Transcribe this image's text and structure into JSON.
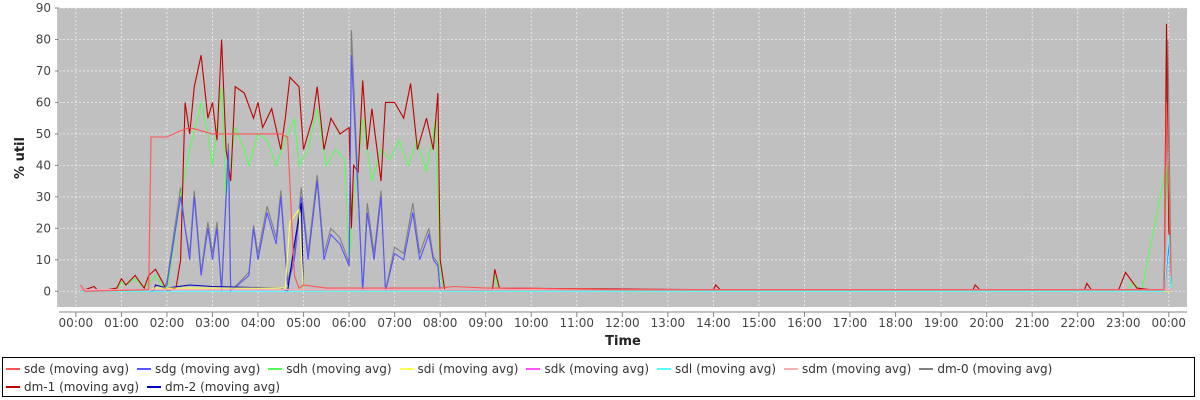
{
  "chart_data": {
    "type": "line",
    "xlabel": "Time",
    "ylabel": "% util",
    "xlim": [
      -0.37,
      24.4
    ],
    "ylim": [
      -5,
      90
    ],
    "yticks": [
      0,
      10,
      20,
      30,
      40,
      50,
      60,
      70,
      80,
      90
    ],
    "xticks": [
      "00:00",
      "01:00",
      "02:00",
      "03:00",
      "04:00",
      "05:00",
      "06:00",
      "07:00",
      "08:00",
      "09:00",
      "10:00",
      "11:00",
      "12:00",
      "13:00",
      "14:00",
      "15:00",
      "16:00",
      "17:00",
      "18:00",
      "19:00",
      "20:00",
      "21:00",
      "22:00",
      "23:00",
      "00:00"
    ],
    "grid": true,
    "legend_position": "bottom",
    "series": [
      {
        "name": "dm-0 (moving avg)",
        "color": "#808080",
        "points": [
          [
            0.1,
            0
          ],
          [
            1.9,
            0
          ],
          [
            2.0,
            3
          ],
          [
            2.3,
            33
          ],
          [
            2.4,
            20
          ],
          [
            2.5,
            12
          ],
          [
            2.6,
            32
          ],
          [
            2.75,
            6
          ],
          [
            2.9,
            22
          ],
          [
            3.0,
            12
          ],
          [
            3.1,
            22
          ],
          [
            3.2,
            0
          ],
          [
            3.35,
            47
          ],
          [
            3.4,
            0
          ],
          [
            3.8,
            6
          ],
          [
            3.9,
            21
          ],
          [
            4.0,
            12
          ],
          [
            4.2,
            27
          ],
          [
            4.4,
            17
          ],
          [
            4.5,
            32
          ],
          [
            4.65,
            3
          ],
          [
            4.8,
            12
          ],
          [
            4.95,
            33
          ],
          [
            5.1,
            12
          ],
          [
            5.3,
            37
          ],
          [
            5.45,
            12
          ],
          [
            5.6,
            20
          ],
          [
            5.8,
            17
          ],
          [
            6.0,
            9
          ],
          [
            6.05,
            83
          ],
          [
            6.2,
            32
          ],
          [
            6.3,
            0
          ],
          [
            6.4,
            28
          ],
          [
            6.55,
            12
          ],
          [
            6.7,
            32
          ],
          [
            6.8,
            0
          ],
          [
            7.0,
            14
          ],
          [
            7.2,
            12
          ],
          [
            7.4,
            28
          ],
          [
            7.55,
            12
          ],
          [
            7.75,
            20
          ],
          [
            7.85,
            11
          ],
          [
            7.95,
            9
          ],
          [
            8.0,
            0
          ],
          [
            23.2,
            0.5
          ],
          [
            23.9,
            0
          ],
          [
            23.98,
            80
          ],
          [
            24.05,
            2
          ]
        ]
      },
      {
        "name": "sdh (moving avg)",
        "color": "#55ff55",
        "points": [
          [
            0.1,
            0
          ],
          [
            0.9,
            0
          ],
          [
            1.0,
            3
          ],
          [
            1.1,
            2
          ],
          [
            1.3,
            4
          ],
          [
            1.5,
            1
          ],
          [
            1.75,
            5
          ],
          [
            2.0,
            0
          ],
          [
            2.3,
            30
          ],
          [
            2.5,
            45
          ],
          [
            2.75,
            60
          ],
          [
            2.9,
            50
          ],
          [
            3.0,
            40
          ],
          [
            3.2,
            65
          ],
          [
            3.3,
            30
          ],
          [
            3.5,
            52
          ],
          [
            3.7,
            45
          ],
          [
            3.8,
            40
          ],
          [
            4.0,
            50
          ],
          [
            4.2,
            48
          ],
          [
            4.4,
            40
          ],
          [
            4.6,
            48
          ],
          [
            4.8,
            55
          ],
          [
            4.9,
            40
          ],
          [
            5.1,
            45
          ],
          [
            5.3,
            58
          ],
          [
            5.5,
            40
          ],
          [
            5.7,
            45
          ],
          [
            5.9,
            42
          ],
          [
            6.0,
            10
          ],
          [
            6.1,
            30
          ],
          [
            6.2,
            40
          ],
          [
            6.3,
            55
          ],
          [
            6.5,
            35
          ],
          [
            6.7,
            45
          ],
          [
            6.9,
            42
          ],
          [
            7.1,
            48
          ],
          [
            7.3,
            40
          ],
          [
            7.5,
            48
          ],
          [
            7.7,
            38
          ],
          [
            7.9,
            55
          ],
          [
            8.0,
            5
          ],
          [
            8.1,
            0
          ],
          [
            9.15,
            0
          ],
          [
            9.2,
            5
          ],
          [
            9.3,
            0
          ],
          [
            23.1,
            0
          ],
          [
            23.2,
            3
          ],
          [
            23.4,
            0
          ],
          [
            23.95,
            40
          ],
          [
            24.05,
            2
          ]
        ]
      },
      {
        "name": "dm-1 (moving avg)",
        "color": "#c00000",
        "points": [
          [
            0.1,
            0
          ],
          [
            0.4,
            1.5
          ],
          [
            0.5,
            0
          ],
          [
            0.9,
            1
          ],
          [
            1.0,
            4
          ],
          [
            1.1,
            2
          ],
          [
            1.3,
            5
          ],
          [
            1.5,
            1
          ],
          [
            1.6,
            5
          ],
          [
            1.75,
            7
          ],
          [
            1.9,
            3
          ],
          [
            2.0,
            0
          ],
          [
            2.2,
            1
          ],
          [
            2.3,
            10
          ],
          [
            2.4,
            60
          ],
          [
            2.5,
            50
          ],
          [
            2.6,
            65
          ],
          [
            2.75,
            75
          ],
          [
            2.9,
            55
          ],
          [
            3.0,
            60
          ],
          [
            3.1,
            48
          ],
          [
            3.2,
            80
          ],
          [
            3.3,
            45
          ],
          [
            3.4,
            35
          ],
          [
            3.5,
            65
          ],
          [
            3.7,
            63
          ],
          [
            3.9,
            55
          ],
          [
            4.0,
            60
          ],
          [
            4.1,
            52
          ],
          [
            4.3,
            58
          ],
          [
            4.5,
            45
          ],
          [
            4.6,
            55
          ],
          [
            4.7,
            68
          ],
          [
            4.9,
            65
          ],
          [
            5.0,
            45
          ],
          [
            5.2,
            55
          ],
          [
            5.3,
            65
          ],
          [
            5.45,
            45
          ],
          [
            5.6,
            55
          ],
          [
            5.8,
            50
          ],
          [
            6.0,
            52
          ],
          [
            6.05,
            20
          ],
          [
            6.1,
            40
          ],
          [
            6.2,
            38
          ],
          [
            6.3,
            67
          ],
          [
            6.4,
            45
          ],
          [
            6.5,
            58
          ],
          [
            6.7,
            35
          ],
          [
            6.8,
            60
          ],
          [
            7.0,
            60
          ],
          [
            7.2,
            55
          ],
          [
            7.35,
            66
          ],
          [
            7.5,
            45
          ],
          [
            7.7,
            55
          ],
          [
            7.85,
            45
          ],
          [
            7.95,
            63
          ],
          [
            8.0,
            10
          ],
          [
            8.1,
            0.5
          ],
          [
            9.15,
            0.5
          ],
          [
            9.2,
            7
          ],
          [
            9.3,
            1
          ],
          [
            14.0,
            0.5
          ],
          [
            14.05,
            2
          ],
          [
            14.15,
            0.5
          ],
          [
            19.7,
            0.5
          ],
          [
            19.75,
            2
          ],
          [
            19.85,
            0.5
          ],
          [
            22.15,
            0.5
          ],
          [
            22.2,
            2.5
          ],
          [
            22.3,
            0.5
          ],
          [
            22.9,
            0.5
          ],
          [
            23.05,
            6
          ],
          [
            23.3,
            1
          ],
          [
            23.9,
            0
          ],
          [
            23.95,
            85
          ],
          [
            24.0,
            20
          ],
          [
            24.05,
            3
          ]
        ]
      },
      {
        "name": "sdg (moving avg)",
        "color": "#5555ff",
        "points": [
          [
            0.1,
            0
          ],
          [
            1.9,
            0
          ],
          [
            2.0,
            2
          ],
          [
            2.3,
            30
          ],
          [
            2.4,
            20
          ],
          [
            2.5,
            10
          ],
          [
            2.6,
            30
          ],
          [
            2.75,
            5
          ],
          [
            2.9,
            20
          ],
          [
            3.0,
            10
          ],
          [
            3.1,
            20
          ],
          [
            3.2,
            0
          ],
          [
            3.35,
            45
          ],
          [
            3.4,
            0
          ],
          [
            3.8,
            5
          ],
          [
            3.9,
            20
          ],
          [
            4.0,
            10
          ],
          [
            4.2,
            25
          ],
          [
            4.4,
            15
          ],
          [
            4.5,
            30
          ],
          [
            4.65,
            2
          ],
          [
            4.8,
            10
          ],
          [
            4.95,
            30
          ],
          [
            5.1,
            10
          ],
          [
            5.3,
            35
          ],
          [
            5.45,
            10
          ],
          [
            5.6,
            18
          ],
          [
            5.8,
            15
          ],
          [
            6.0,
            8
          ],
          [
            6.05,
            75
          ],
          [
            6.2,
            30
          ],
          [
            6.3,
            0
          ],
          [
            6.4,
            25
          ],
          [
            6.55,
            10
          ],
          [
            6.7,
            30
          ],
          [
            6.8,
            0
          ],
          [
            7.0,
            12
          ],
          [
            7.2,
            10
          ],
          [
            7.4,
            25
          ],
          [
            7.55,
            10
          ],
          [
            7.75,
            18
          ],
          [
            7.85,
            10
          ],
          [
            7.95,
            8
          ],
          [
            8.0,
            0
          ],
          [
            23.9,
            0
          ],
          [
            24.0,
            15
          ],
          [
            24.05,
            1
          ]
        ]
      },
      {
        "name": "dm-2 (moving avg)",
        "color": "#0000c0",
        "points": [
          [
            0.1,
            0
          ],
          [
            1.7,
            0
          ],
          [
            1.75,
            2
          ],
          [
            2.0,
            1
          ],
          [
            2.5,
            2
          ],
          [
            3.0,
            1.5
          ],
          [
            4.5,
            1
          ],
          [
            4.65,
            0
          ],
          [
            4.8,
            15
          ],
          [
            4.95,
            28
          ],
          [
            5.0,
            0
          ],
          [
            24.05,
            0
          ]
        ]
      },
      {
        "name": "sdi (moving avg)",
        "color": "#ffff55",
        "points": [
          [
            0.1,
            0
          ],
          [
            1.6,
            0
          ],
          [
            1.7,
            1
          ],
          [
            2.0,
            1
          ],
          [
            4.6,
            1
          ],
          [
            4.7,
            22
          ],
          [
            4.9,
            26
          ],
          [
            5.0,
            0
          ],
          [
            24.05,
            0
          ]
        ]
      },
      {
        "name": "sdk (moving avg)",
        "color": "#ff55ff",
        "points": [
          [
            0.1,
            0.5
          ],
          [
            12,
            0.5
          ],
          [
            24.05,
            0.5
          ]
        ]
      },
      {
        "name": "sdl (moving avg)",
        "color": "#55ffff",
        "points": [
          [
            0.1,
            0
          ],
          [
            23.9,
            0
          ],
          [
            24.0,
            18
          ],
          [
            24.05,
            1
          ]
        ]
      },
      {
        "name": "sdm (moving avg)",
        "color": "#ffafaf",
        "points": [
          [
            0.1,
            0.5
          ],
          [
            24.05,
            0.5
          ]
        ]
      },
      {
        "name": "sde (moving avg)",
        "color": "#ff5555",
        "points": [
          [
            0.1,
            2
          ],
          [
            0.2,
            0
          ],
          [
            1.6,
            0.5
          ],
          [
            1.65,
            49
          ],
          [
            2.0,
            49
          ],
          [
            2.3,
            51
          ],
          [
            2.5,
            52
          ],
          [
            3.0,
            50
          ],
          [
            3.5,
            50
          ],
          [
            4.0,
            50
          ],
          [
            4.5,
            50
          ],
          [
            4.65,
            49
          ],
          [
            4.8,
            5
          ],
          [
            4.9,
            1
          ],
          [
            5.0,
            2
          ],
          [
            5.5,
            1
          ],
          [
            6,
            1
          ],
          [
            7,
            1
          ],
          [
            8,
            1
          ],
          [
            8.3,
            1.5
          ],
          [
            9,
            1
          ],
          [
            9.5,
            1
          ],
          [
            12,
            0.5
          ],
          [
            20,
            0.5
          ],
          [
            23.9,
            0.5
          ],
          [
            23.95,
            60
          ],
          [
            24.05,
            5
          ]
        ]
      }
    ],
    "legend_order": [
      "sde (moving avg)",
      "sdg (moving avg)",
      "sdh (moving avg)",
      "sdi (moving avg)",
      "sdk (moving avg)",
      "sdl (moving avg)",
      "sdm (moving avg)",
      "dm-0 (moving avg)",
      "dm-1 (moving avg)",
      "dm-2 (moving avg)"
    ]
  }
}
